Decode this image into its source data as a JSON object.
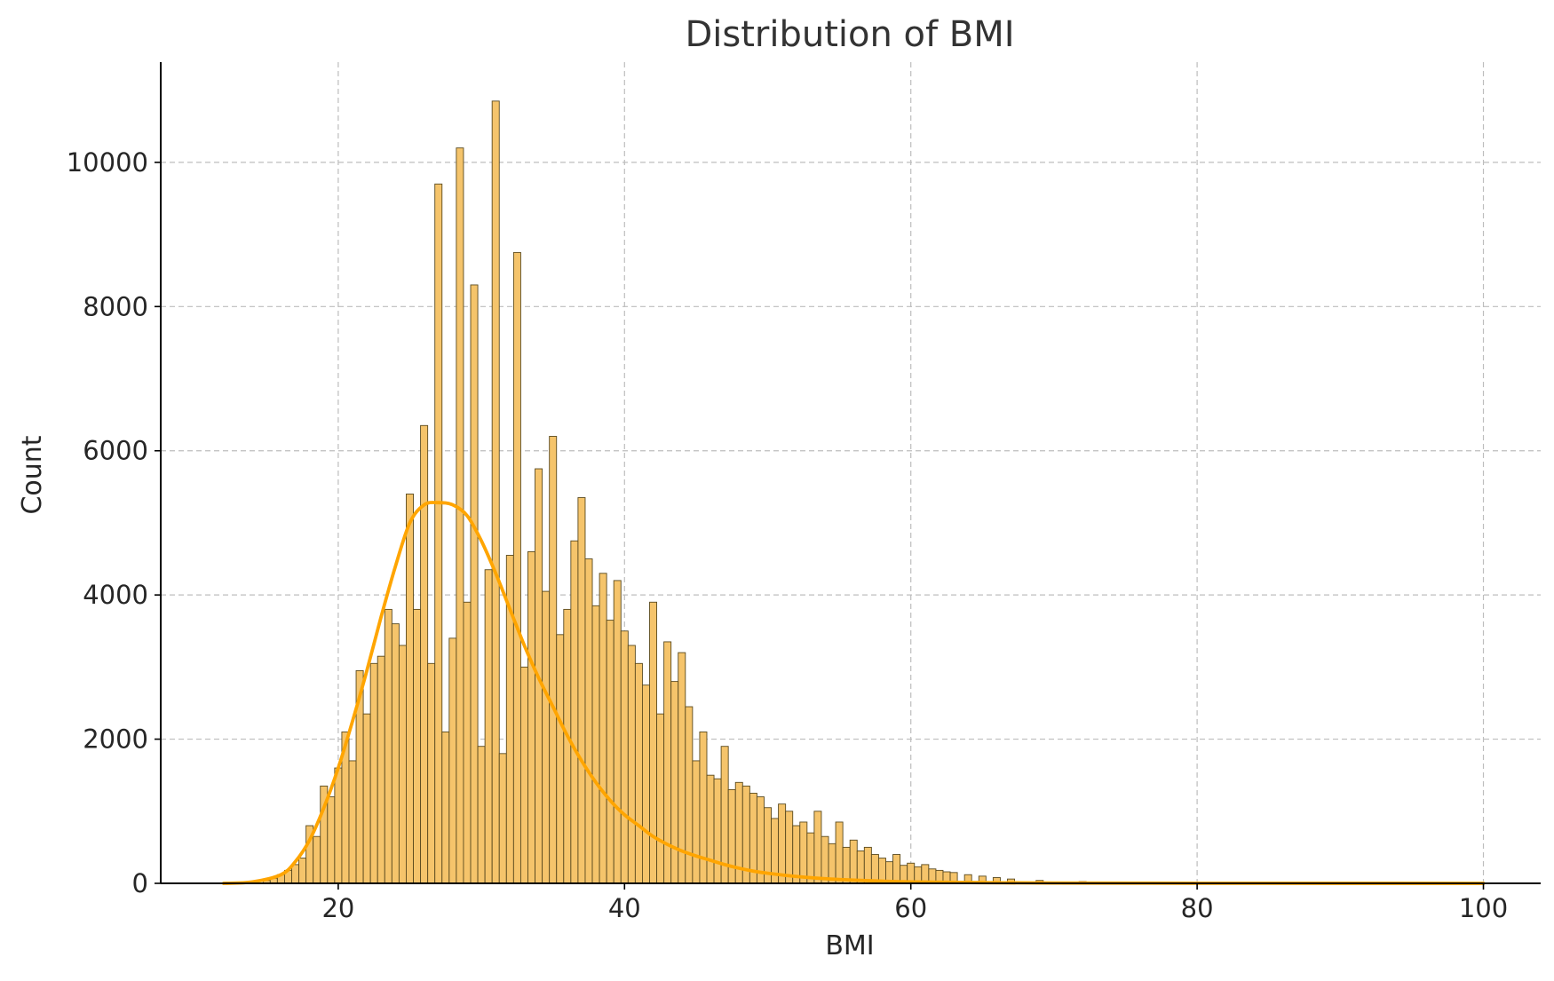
{
  "chart_data": {
    "type": "bar",
    "title": "Distribution of BMI",
    "xlabel": "BMI",
    "ylabel": "Count",
    "xlim": [
      7.6,
      104.0
    ],
    "ylim": [
      0,
      11390
    ],
    "xticks": [
      20,
      40,
      60,
      80,
      100
    ],
    "yticks": [
      0,
      2000,
      4000,
      6000,
      8000,
      10000
    ],
    "grid": true,
    "histogram": {
      "bins": [
        {
          "x": 12,
          "count": 0
        },
        {
          "x": 14,
          "count": 20
        },
        {
          "x": 15,
          "count": 40
        },
        {
          "x": 15.5,
          "count": 70
        },
        {
          "x": 16,
          "count": 120
        },
        {
          "x": 16.5,
          "count": 180
        },
        {
          "x": 17,
          "count": 260
        },
        {
          "x": 17.5,
          "count": 350
        },
        {
          "x": 18,
          "count": 800
        },
        {
          "x": 18.5,
          "count": 650
        },
        {
          "x": 19,
          "count": 1350
        },
        {
          "x": 19.5,
          "count": 1200
        },
        {
          "x": 20,
          "count": 1600
        },
        {
          "x": 20.5,
          "count": 2100
        },
        {
          "x": 21,
          "count": 1700
        },
        {
          "x": 21.5,
          "count": 2950
        },
        {
          "x": 22,
          "count": 2350
        },
        {
          "x": 22.5,
          "count": 3050
        },
        {
          "x": 23,
          "count": 3150
        },
        {
          "x": 23.5,
          "count": 3800
        },
        {
          "x": 24,
          "count": 3600
        },
        {
          "x": 24.5,
          "count": 3300
        },
        {
          "x": 25,
          "count": 5400
        },
        {
          "x": 25.5,
          "count": 3800
        },
        {
          "x": 26,
          "count": 6350
        },
        {
          "x": 26.5,
          "count": 3050
        },
        {
          "x": 27,
          "count": 9700
        },
        {
          "x": 27.5,
          "count": 2100
        },
        {
          "x": 28,
          "count": 3400
        },
        {
          "x": 28.5,
          "count": 10200
        },
        {
          "x": 29,
          "count": 3900
        },
        {
          "x": 29.5,
          "count": 8300
        },
        {
          "x": 30,
          "count": 1900
        },
        {
          "x": 30.5,
          "count": 4350
        },
        {
          "x": 31,
          "count": 10850
        },
        {
          "x": 31.5,
          "count": 1800
        },
        {
          "x": 32,
          "count": 4550
        },
        {
          "x": 32.5,
          "count": 8750
        },
        {
          "x": 33,
          "count": 3000
        },
        {
          "x": 33.5,
          "count": 4600
        },
        {
          "x": 34,
          "count": 5750
        },
        {
          "x": 34.5,
          "count": 4050
        },
        {
          "x": 35,
          "count": 6200
        },
        {
          "x": 35.5,
          "count": 3450
        },
        {
          "x": 36,
          "count": 3800
        },
        {
          "x": 36.5,
          "count": 4750
        },
        {
          "x": 37,
          "count": 5350
        },
        {
          "x": 37.5,
          "count": 4500
        },
        {
          "x": 38,
          "count": 3850
        },
        {
          "x": 38.5,
          "count": 4300
        },
        {
          "x": 39,
          "count": 3650
        },
        {
          "x": 39.5,
          "count": 4200
        },
        {
          "x": 40,
          "count": 3500
        },
        {
          "x": 40.5,
          "count": 3300
        },
        {
          "x": 41,
          "count": 3050
        },
        {
          "x": 41.5,
          "count": 2750
        },
        {
          "x": 42,
          "count": 3900
        },
        {
          "x": 42.5,
          "count": 2350
        },
        {
          "x": 43,
          "count": 3350
        },
        {
          "x": 43.5,
          "count": 2800
        },
        {
          "x": 44,
          "count": 3200
        },
        {
          "x": 44.5,
          "count": 2450
        },
        {
          "x": 45,
          "count": 1700
        },
        {
          "x": 45.5,
          "count": 2100
        },
        {
          "x": 46,
          "count": 1500
        },
        {
          "x": 46.5,
          "count": 1450
        },
        {
          "x": 47,
          "count": 1900
        },
        {
          "x": 47.5,
          "count": 1300
        },
        {
          "x": 48,
          "count": 1400
        },
        {
          "x": 48.5,
          "count": 1350
        },
        {
          "x": 49,
          "count": 1250
        },
        {
          "x": 49.5,
          "count": 1200
        },
        {
          "x": 50,
          "count": 1050
        },
        {
          "x": 50.5,
          "count": 900
        },
        {
          "x": 51,
          "count": 1100
        },
        {
          "x": 51.5,
          "count": 1000
        },
        {
          "x": 52,
          "count": 800
        },
        {
          "x": 52.5,
          "count": 850
        },
        {
          "x": 53,
          "count": 700
        },
        {
          "x": 53.5,
          "count": 1000
        },
        {
          "x": 54,
          "count": 650
        },
        {
          "x": 54.5,
          "count": 550
        },
        {
          "x": 55,
          "count": 850
        },
        {
          "x": 55.5,
          "count": 500
        },
        {
          "x": 56,
          "count": 600
        },
        {
          "x": 56.5,
          "count": 450
        },
        {
          "x": 57,
          "count": 500
        },
        {
          "x": 57.5,
          "count": 400
        },
        {
          "x": 58,
          "count": 350
        },
        {
          "x": 58.5,
          "count": 300
        },
        {
          "x": 59,
          "count": 400
        },
        {
          "x": 59.5,
          "count": 250
        },
        {
          "x": 60,
          "count": 280
        },
        {
          "x": 60.5,
          "count": 230
        },
        {
          "x": 61,
          "count": 260
        },
        {
          "x": 61.5,
          "count": 200
        },
        {
          "x": 62,
          "count": 180
        },
        {
          "x": 62.5,
          "count": 160
        },
        {
          "x": 63,
          "count": 150
        },
        {
          "x": 64,
          "count": 120
        },
        {
          "x": 65,
          "count": 100
        },
        {
          "x": 66,
          "count": 80
        },
        {
          "x": 67,
          "count": 60
        },
        {
          "x": 69,
          "count": 40
        },
        {
          "x": 72,
          "count": 25
        },
        {
          "x": 75,
          "count": 15
        },
        {
          "x": 80,
          "count": 8
        },
        {
          "x": 85,
          "count": 5
        },
        {
          "x": 90,
          "count": 3
        },
        {
          "x": 95,
          "count": 2
        },
        {
          "x": 100,
          "count": 1
        }
      ],
      "bin_width": 0.5
    },
    "kde": {
      "x": [
        12,
        14,
        16,
        17,
        18,
        19,
        20,
        21,
        22,
        23,
        24,
        25,
        26,
        27,
        28,
        29,
        30,
        31,
        32,
        33,
        34,
        35,
        36,
        37,
        38,
        39,
        40,
        41,
        42,
        43,
        44,
        45,
        46,
        47,
        48,
        49,
        50,
        52,
        54,
        56,
        58,
        60,
        65,
        70,
        80,
        90,
        100
      ],
      "y": [
        0,
        20,
        120,
        300,
        600,
        1050,
        1600,
        2250,
        2950,
        3700,
        4400,
        5000,
        5250,
        5280,
        5250,
        5100,
        4750,
        4300,
        3800,
        3300,
        2850,
        2450,
        2050,
        1700,
        1400,
        1150,
        950,
        800,
        650,
        540,
        450,
        380,
        320,
        260,
        210,
        170,
        140,
        95,
        65,
        45,
        30,
        20,
        10,
        5,
        2,
        1,
        0
      ]
    },
    "colors": {
      "bar_fill": "#f5c46b",
      "bar_edge": "#5a4a1f",
      "kde_line": "#ffa500",
      "axis": "#000000",
      "grid": "#bdbdbd",
      "text": "#262626"
    }
  }
}
